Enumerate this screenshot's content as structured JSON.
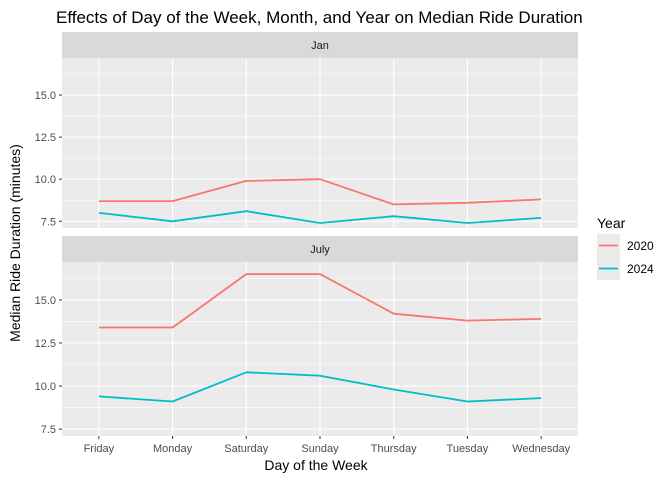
{
  "chart_data": {
    "type": "line",
    "title": "Effects of Day of the Week, Month, and Year on Median Ride Duration",
    "xlabel": "Day of the Week",
    "ylabel": "Median Ride Duration (minutes)",
    "categories": [
      "Friday",
      "Monday",
      "Saturday",
      "Sunday",
      "Thursday",
      "Tuesday",
      "Wednesday"
    ],
    "ylim": [
      7.1,
      17.2
    ],
    "yticks": [
      7.5,
      10.0,
      12.5,
      15.0
    ],
    "ytick_labels": [
      "7.5",
      "10.0",
      "12.5",
      "15.0"
    ],
    "grid": true,
    "legend": {
      "title": "Year",
      "placement": "right",
      "entries": [
        {
          "label": "2020",
          "color": "#F8766D"
        },
        {
          "label": "2024",
          "color": "#00BFC4"
        }
      ]
    },
    "facets": [
      {
        "label": "Jan",
        "series": [
          {
            "name": "2020",
            "color": "#F8766D",
            "values": [
              8.7,
              8.7,
              9.9,
              10.0,
              8.5,
              8.6,
              8.8
            ]
          },
          {
            "name": "2024",
            "color": "#00BFC4",
            "values": [
              8.0,
              7.5,
              8.1,
              7.4,
              7.8,
              7.4,
              7.7
            ]
          }
        ]
      },
      {
        "label": "July",
        "series": [
          {
            "name": "2020",
            "color": "#F8766D",
            "values": [
              13.4,
              13.4,
              16.5,
              16.5,
              14.2,
              13.8,
              13.9
            ]
          },
          {
            "name": "2024",
            "color": "#00BFC4",
            "values": [
              9.4,
              9.1,
              10.8,
              10.6,
              9.8,
              9.1,
              9.3
            ]
          }
        ]
      }
    ]
  }
}
